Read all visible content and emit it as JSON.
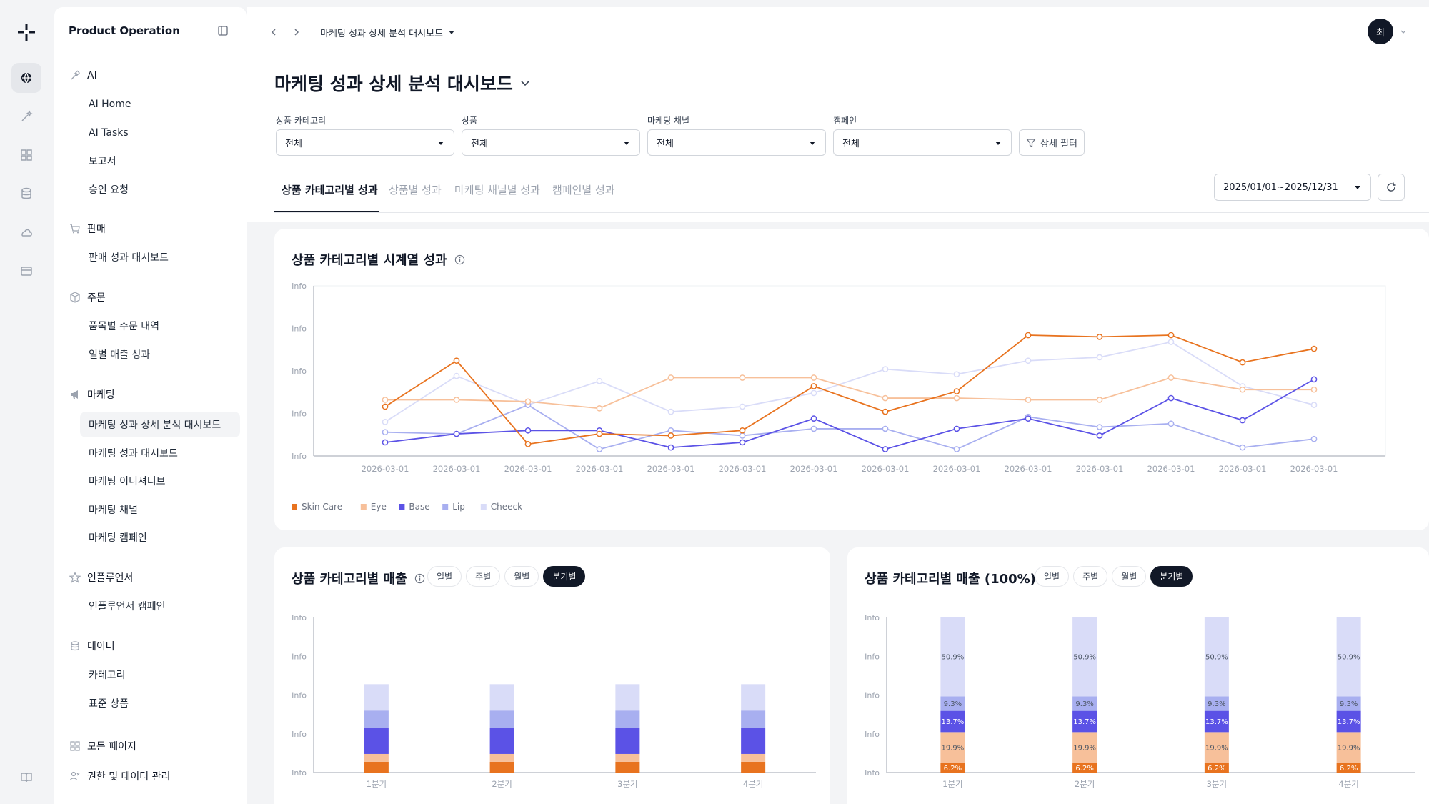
{
  "rail": {
    "logo": "brand-logo",
    "icons": [
      "globe-icon",
      "ai-wand-icon",
      "grid-icon",
      "database-icon",
      "cloud-icon",
      "card-icon",
      "book-icon"
    ]
  },
  "sidebar": {
    "workspace": "Product Operation",
    "sections": [
      {
        "label": "AI",
        "icon": "magic-wand-icon",
        "items": [
          "AI Home",
          "AI Tasks",
          "보고서",
          "승인 요청"
        ]
      },
      {
        "label": "판매",
        "icon": "cart-icon",
        "items": [
          "판매 성과 대시보드"
        ]
      },
      {
        "label": "주문",
        "icon": "box-icon",
        "items": [
          "품목별 주문 내역",
          "일별 매출 성과"
        ]
      },
      {
        "label": "마케팅",
        "icon": "megaphone-icon",
        "items": [
          "마케팅 성과 상세 분석 대시보드",
          "마케팅 성과 대시보드",
          "마케팅 이니셔티브",
          "마케팅 채널",
          "마케팅 캠페인"
        ]
      },
      {
        "label": "인플루언서",
        "icon": "star-icon",
        "items": [
          "인플루언서 캠페인"
        ]
      },
      {
        "label": "데이터",
        "icon": "database-icon",
        "items": [
          "카테고리",
          "표준 상품"
        ]
      }
    ],
    "active_item": "마케팅 성과 상세 분석 대시보드",
    "bottom": [
      {
        "label": "모든 페이지",
        "icon": "pages-icon"
      },
      {
        "label": "권한 및 데이터 관리",
        "icon": "users-icon"
      }
    ]
  },
  "header": {
    "breadcrumb": "마케팅 성과 상세 분석 대시보드",
    "avatar": "최"
  },
  "page": {
    "title": "마케팅 성과 상세 분석 대시보드",
    "filters": [
      {
        "label": "상품 카테고리",
        "value": "전체"
      },
      {
        "label": "상품",
        "value": "전체"
      },
      {
        "label": "마케팅 채널",
        "value": "전체"
      },
      {
        "label": "캠페인",
        "value": "전체"
      }
    ],
    "detail_filter": "상세 필터",
    "tabs": [
      "상품 카테고리별 성과",
      "상품별 성과",
      "마케팅 채널별 성과",
      "캠페인별 성과"
    ],
    "date_range": "2025/01/01~2025/12/31"
  },
  "colors": {
    "skin_care": "#e8731f",
    "eye": "#f7c09a",
    "base": "#5b52e6",
    "lip": "#a8aff0",
    "cheeck": "#d9dcf8"
  },
  "cards": {
    "line": {
      "title": "상품 카테고리별 시계열 성과"
    },
    "stack": {
      "title": "상품 카테고리별 매출",
      "periods": [
        "일별",
        "주별",
        "월별",
        "분기별"
      ],
      "active": "분기별"
    },
    "pct": {
      "title": "상품 카테고리별 매출 (100%)",
      "periods": [
        "일별",
        "주별",
        "월별",
        "분기별"
      ],
      "active": "분기별"
    }
  },
  "chart_data": [
    {
      "type": "line",
      "title": "상품 카테고리별 시계열 성과",
      "y_tick_labels": [
        "Info",
        "Info",
        "Info",
        "Info",
        "Info"
      ],
      "ylim": [
        0,
        100
      ],
      "x": [
        "2026-03-01",
        "2026-03-01",
        "2026-03-01",
        "2026-03-01",
        "2026-03-01",
        "2026-03-01",
        "2026-03-01",
        "2026-03-01",
        "2026-03-01",
        "2026-03-01",
        "2026-03-01",
        "2026-03-01",
        "2026-03-01",
        "2026-03-01"
      ],
      "legend_position": "bottom-left",
      "series": [
        {
          "name": "Skin Care",
          "values": [
            29,
            56,
            7,
            13,
            12,
            15,
            41,
            26,
            38,
            71,
            70,
            71,
            55,
            63
          ]
        },
        {
          "name": "Eye",
          "values": [
            33,
            33,
            32,
            28,
            46,
            46,
            46,
            34,
            34,
            33,
            33,
            46,
            39,
            39
          ]
        },
        {
          "name": "Base",
          "values": [
            8,
            13,
            15,
            15,
            5,
            8,
            22,
            4,
            16,
            22,
            12,
            34,
            21,
            45
          ]
        },
        {
          "name": "Lip",
          "values": [
            14,
            13,
            30,
            4,
            15,
            12,
            16,
            16,
            4,
            23,
            17,
            19,
            5,
            10
          ]
        },
        {
          "name": "Cheeck",
          "values": [
            20,
            47,
            30,
            44,
            26,
            29,
            37,
            51,
            48,
            56,
            58,
            67,
            41,
            30
          ]
        }
      ]
    },
    {
      "type": "bar",
      "stacked": true,
      "title": "상품 카테고리별 매출",
      "categories": [
        "1분기",
        "2분기",
        "3분기",
        "4분기"
      ],
      "y_tick_labels": [
        "Info",
        "Info",
        "Info",
        "Info",
        "Info"
      ],
      "ylim": [
        0,
        100
      ],
      "series": [
        {
          "name": "Skin Care",
          "values": [
            7,
            7,
            7,
            7
          ]
        },
        {
          "name": "Eye",
          "values": [
            5,
            5,
            5,
            5
          ]
        },
        {
          "name": "Base",
          "values": [
            17,
            17,
            17,
            17
          ]
        },
        {
          "name": "Lip",
          "values": [
            11,
            11,
            11,
            11
          ]
        },
        {
          "name": "Cheeck",
          "values": [
            17,
            17,
            17,
            17
          ]
        }
      ]
    },
    {
      "type": "bar",
      "stacked": true,
      "title": "상품 카테고리별 매출 (100%)",
      "categories": [
        "1분기",
        "2분기",
        "3분기",
        "4분기"
      ],
      "y_tick_labels": [
        "Info",
        "Info",
        "Info",
        "Info",
        "Info"
      ],
      "ylim": [
        0,
        100
      ],
      "series": [
        {
          "name": "Skin Care",
          "values": [
            6.2,
            6.2,
            6.2,
            6.2
          ],
          "labels": [
            "6.2%",
            "6.2%",
            "6.2%",
            "6.2%"
          ]
        },
        {
          "name": "Eye",
          "values": [
            19.9,
            19.9,
            19.9,
            19.9
          ],
          "labels": [
            "19.9%",
            "19.9%",
            "19.9%",
            "19.9%"
          ]
        },
        {
          "name": "Base",
          "values": [
            13.7,
            13.7,
            13.7,
            13.7
          ],
          "labels": [
            "13.7%",
            "13.7%",
            "13.7%",
            "13.7%"
          ]
        },
        {
          "name": "Lip",
          "values": [
            9.3,
            9.3,
            9.3,
            9.3
          ],
          "labels": [
            "9.3%",
            "9.3%",
            "9.3%",
            "9.3%"
          ]
        },
        {
          "name": "Cheeck",
          "values": [
            50.9,
            50.9,
            50.9,
            50.9
          ],
          "labels": [
            "50.9%",
            "50.9%",
            "50.9%",
            "50.9%"
          ]
        }
      ]
    }
  ]
}
